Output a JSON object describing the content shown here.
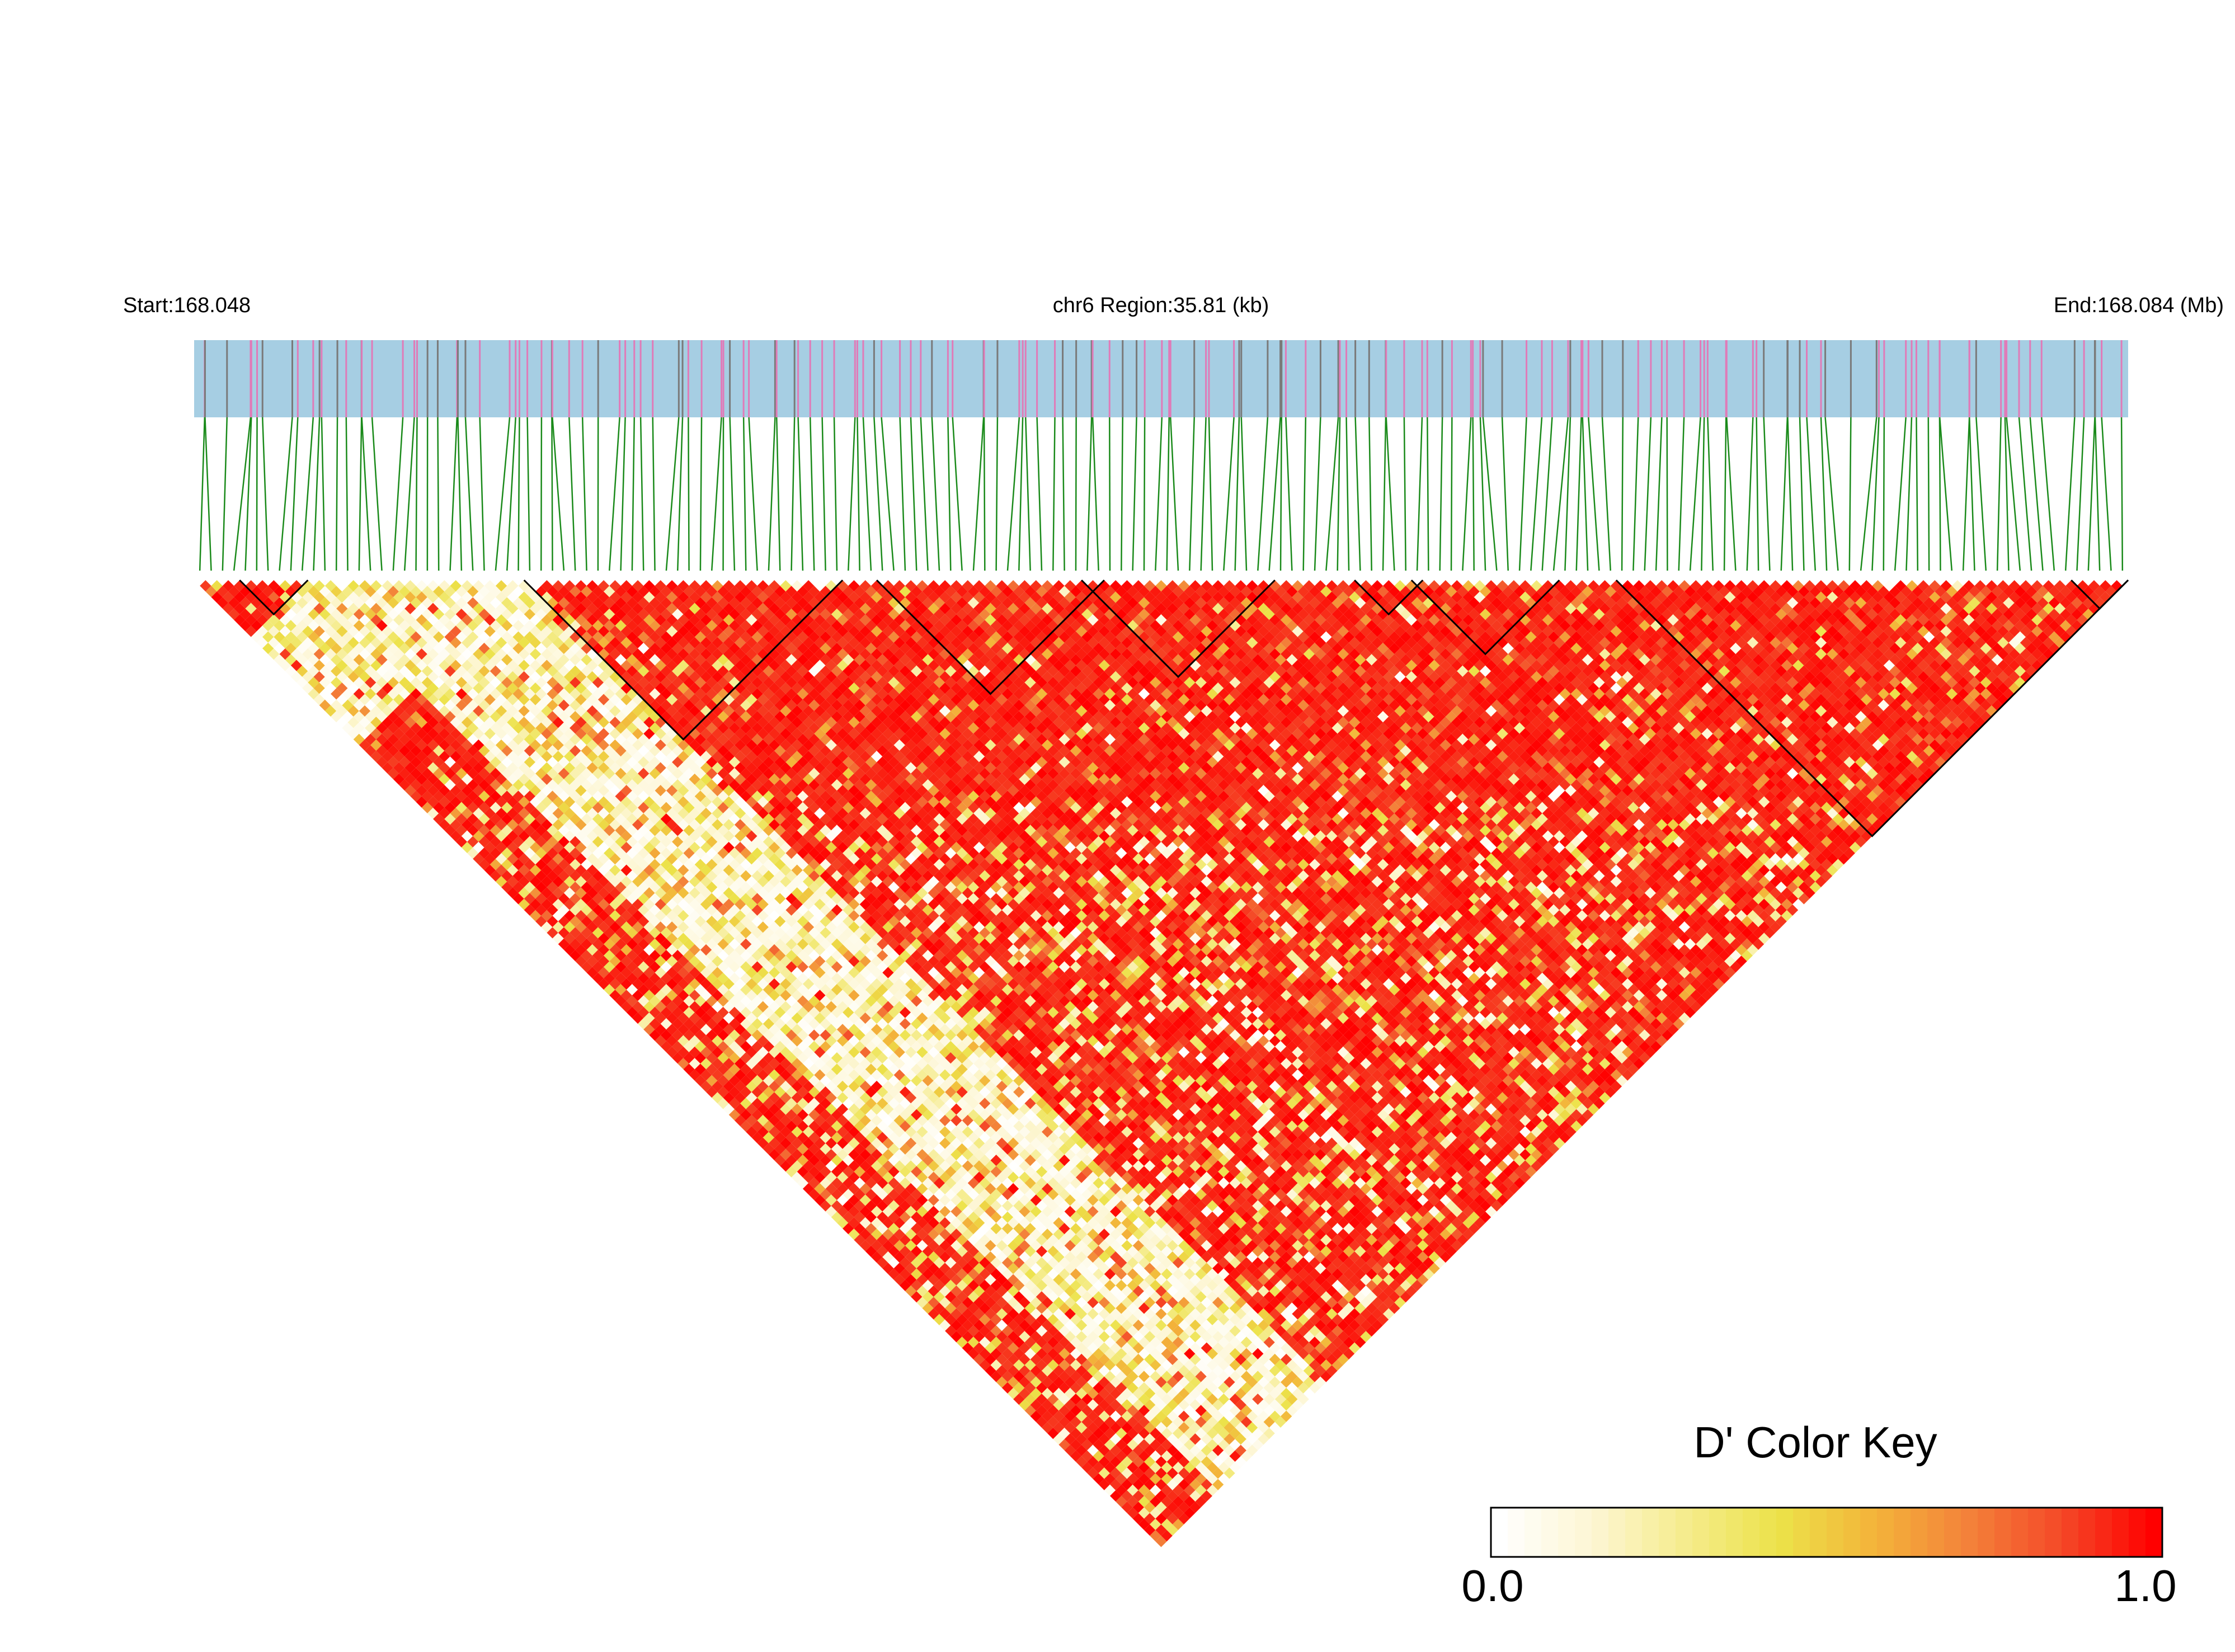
{
  "header": {
    "start_label": "Start:168.048",
    "region_label": "chr6 Region:35.81 (kb)",
    "end_label": "End:168.084 (Mb)"
  },
  "legend": {
    "title": "D' Color Key",
    "min_label": "0.0",
    "max_label": "1.0",
    "stops": [
      "#ffffff",
      "#fdf6d3",
      "#f5ec8c",
      "#ece249",
      "#f3b43a",
      "#f3823a",
      "#f44a28",
      "#ff0000"
    ]
  },
  "colors": {
    "track_fill": "#a6cee3",
    "snp_pink": "#e07bb8",
    "snp_gray": "#7a7a7a",
    "connector": "#1a8a1a",
    "block_outline": "#000000"
  },
  "chart_data": {
    "type": "heatmap",
    "title": "",
    "chromosome": "chr6",
    "region_start_mb": 168.048,
    "region_end_mb": 168.084,
    "region_length_kb": 35.81,
    "metric": "D'",
    "value_range": [
      0,
      1
    ],
    "n_snps": 170,
    "blocks": [
      [
        4,
        10
      ],
      [
        29,
        57
      ],
      [
        60,
        80
      ],
      [
        78,
        95
      ],
      [
        102,
        108
      ],
      [
        107,
        120
      ],
      [
        125,
        170
      ],
      [
        165,
        170
      ]
    ],
    "low_ld_snp_range": [
      10,
      29
    ],
    "description_of_pattern": "upper-left SNPs 10-29 show weak LD (white/yellow); remaining SNP pairs mostly strong LD (red)"
  }
}
